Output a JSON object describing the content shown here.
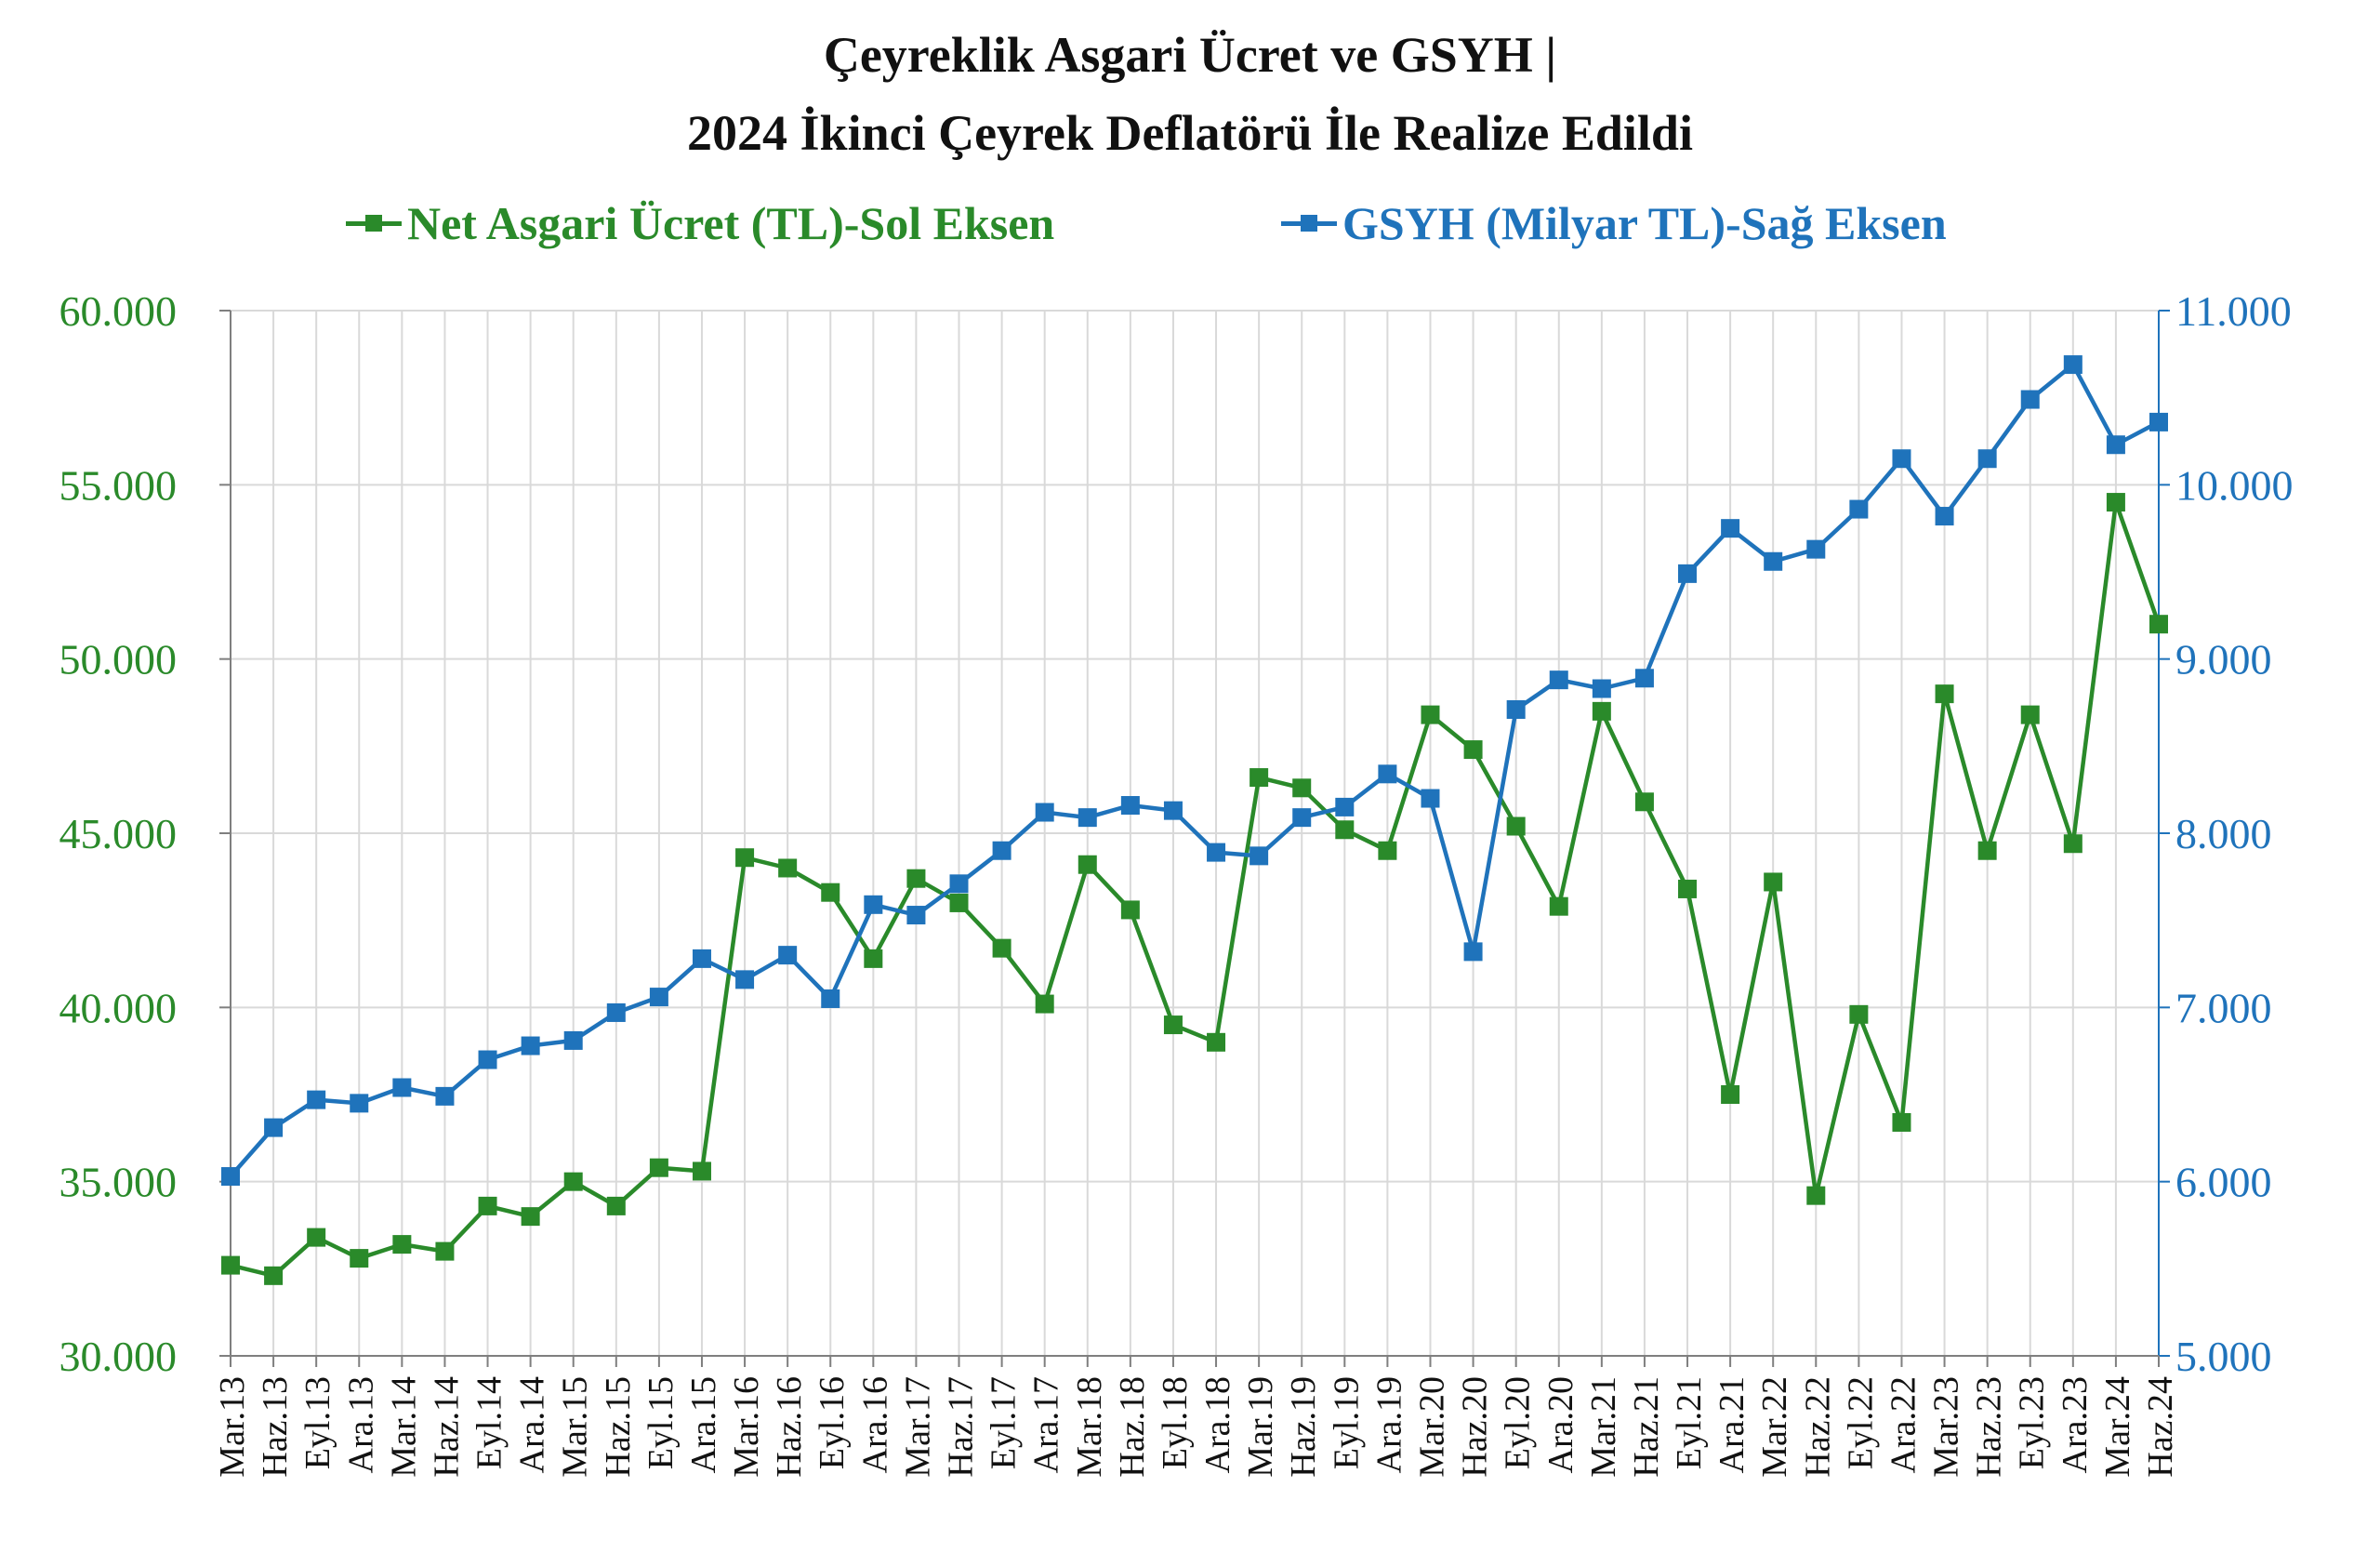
{
  "title_line1": "Çeyreklik Asgari Ücret ve GSYH |",
  "title_line2": "2024 İkinci Çeyrek Deflatörü İle Realize Edildi",
  "colors": {
    "green": "#2a8a2a",
    "blue": "#1f73bb",
    "grid": "#d9d9d9"
  },
  "chart_data": {
    "type": "line",
    "title": "Çeyreklik Asgari Ücret ve GSYH | 2024 İkinci Çeyrek Deflatörü İle Realize Edildi",
    "legend_position": "top",
    "grid": true,
    "categories": [
      "Mar.13",
      "Haz.13",
      "Eyl.13",
      "Ara.13",
      "Mar.14",
      "Haz.14",
      "Eyl.14",
      "Ara.14",
      "Mar.15",
      "Haz.15",
      "Eyl.15",
      "Ara.15",
      "Mar.16",
      "Haz.16",
      "Eyl.16",
      "Ara.16",
      "Mar.17",
      "Haz.17",
      "Eyl.17",
      "Ara.17",
      "Mar.18",
      "Haz.18",
      "Eyl.18",
      "Ara.18",
      "Mar.19",
      "Haz.19",
      "Eyl.19",
      "Ara.19",
      "Mar.20",
      "Haz.20",
      "Eyl.20",
      "Ara.20",
      "Mar.21",
      "Haz.21",
      "Eyl.21",
      "Ara.21",
      "Mar.22",
      "Haz.22",
      "Eyl.22",
      "Ara.22",
      "Mar.23",
      "Haz.23",
      "Eyl.23",
      "Ara.23",
      "Mar.24",
      "Haz.24"
    ],
    "left_axis": {
      "ylim": [
        30000,
        60000
      ],
      "ticks": [
        "30.000",
        "35.000",
        "40.000",
        "45.000",
        "50.000",
        "55.000",
        "60.000"
      ]
    },
    "right_axis": {
      "ylim": [
        5000,
        11000
      ],
      "ticks": [
        "5.000",
        "6.000",
        "7.000",
        "8.000",
        "9.000",
        "10.000",
        "11.000"
      ]
    },
    "series": [
      {
        "name": "Net Asgari Ücret (TL)-Sol Eksen",
        "axis": "left",
        "color": "#2a8a2a",
        "values": [
          32600,
          32300,
          33400,
          32800,
          33200,
          33000,
          34300,
          34000,
          35000,
          34300,
          35400,
          35300,
          44300,
          44000,
          43300,
          41400,
          43700,
          43000,
          41700,
          40100,
          44100,
          42800,
          39500,
          39000,
          46600,
          46300,
          45100,
          44500,
          48400,
          47400,
          45200,
          42900,
          48500,
          45900,
          43400,
          37500,
          43600,
          34600,
          39800,
          36700,
          49000,
          44500,
          48400,
          44700,
          54500,
          51000
        ]
      },
      {
        "name": "GSYH (Milyar TL)-Sağ Eksen",
        "axis": "right",
        "color": "#1f73bb",
        "values": [
          6030,
          6310,
          6470,
          6450,
          6540,
          6490,
          6700,
          6780,
          6810,
          6970,
          7060,
          7280,
          7160,
          7300,
          7050,
          7590,
          7530,
          7710,
          7900,
          8120,
          8090,
          8160,
          8130,
          7890,
          7870,
          8090,
          8150,
          8340,
          8200,
          7320,
          8710,
          8880,
          8830,
          8890,
          9490,
          9750,
          9560,
          9630,
          9860,
          10150,
          9820,
          10150,
          10490,
          10690,
          10230,
          10360
        ]
      }
    ]
  }
}
